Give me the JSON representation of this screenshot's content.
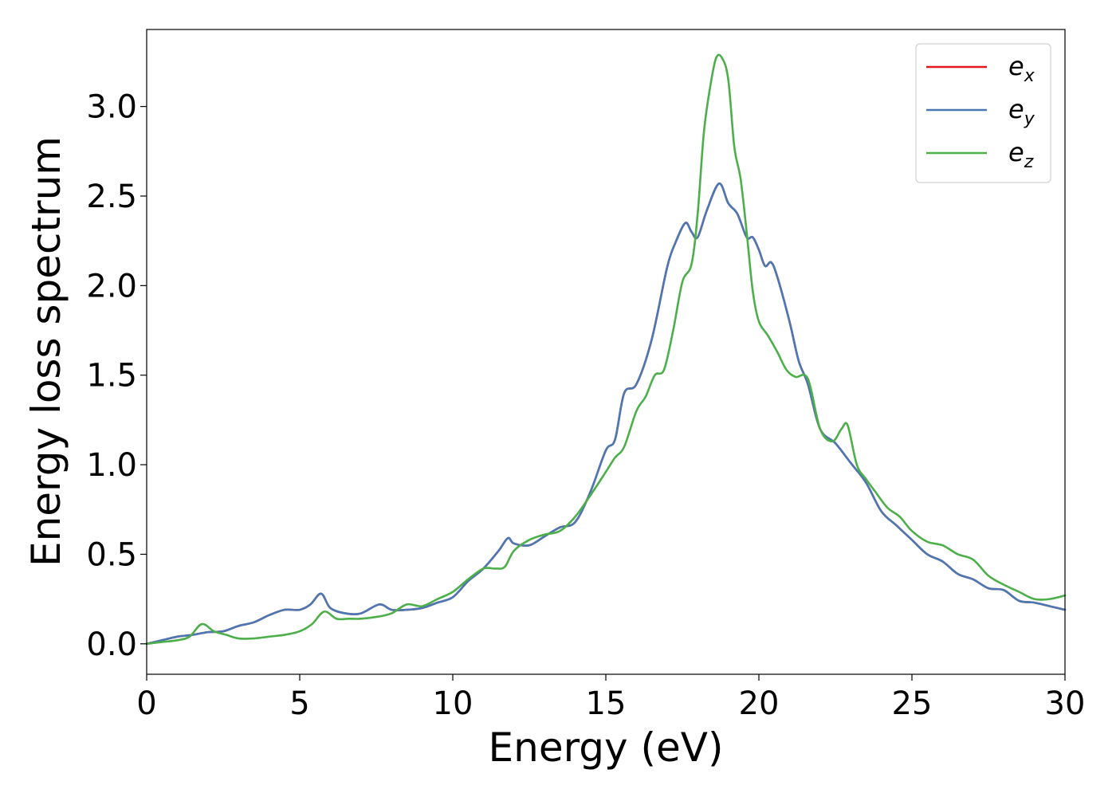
{
  "chart_data": {
    "type": "line",
    "title": "",
    "xlabel": "Energy (eV)",
    "ylabel": "Energy loss spectrum",
    "xlim": [
      0,
      30
    ],
    "ylim": [
      -0.17,
      3.43
    ],
    "xticks": [
      0,
      5,
      10,
      15,
      20,
      25,
      30
    ],
    "xtick_labels": [
      "0",
      "5",
      "10",
      "15",
      "20",
      "25",
      "30"
    ],
    "yticks": [
      0.0,
      0.5,
      1.0,
      1.5,
      2.0,
      2.5,
      3.0
    ],
    "ytick_labels": [
      "0.0",
      "0.5",
      "1.0",
      "1.5",
      "2.0",
      "2.5",
      "3.0"
    ],
    "grid": false,
    "legend_position": "top-right",
    "series": [
      {
        "name": "e_x",
        "label_base": "e",
        "label_sub": "x",
        "color": "#e41a1c",
        "x": [
          0,
          0.5,
          1,
          1.5,
          2,
          2.5,
          3,
          3.5,
          4,
          4.5,
          5,
          5.35,
          5.7,
          6,
          6.5,
          7,
          7.6,
          8,
          8.5,
          9,
          9.5,
          10,
          10.5,
          11,
          11.5,
          11.8,
          12,
          12.5,
          13,
          13.5,
          14,
          14.5,
          15,
          15.3,
          15.6,
          16,
          16.5,
          17,
          17.3,
          17.6,
          17.8,
          18,
          18.3,
          18.7,
          19,
          19.3,
          19.6,
          19.8,
          20,
          20.2,
          20.4,
          20.6,
          21,
          21.3,
          21.6,
          22,
          22.5,
          23,
          23.5,
          24,
          24.5,
          25,
          25.5,
          26,
          26.5,
          27,
          27.5,
          28,
          28.5,
          29,
          29.5,
          30
        ],
        "values": [
          0,
          0.02,
          0.04,
          0.05,
          0.065,
          0.07,
          0.1,
          0.12,
          0.16,
          0.19,
          0.19,
          0.22,
          0.28,
          0.2,
          0.17,
          0.17,
          0.22,
          0.19,
          0.19,
          0.2,
          0.23,
          0.26,
          0.35,
          0.42,
          0.52,
          0.59,
          0.56,
          0.55,
          0.6,
          0.65,
          0.68,
          0.85,
          1.08,
          1.14,
          1.4,
          1.45,
          1.7,
          2.1,
          2.25,
          2.35,
          2.3,
          2.27,
          2.42,
          2.57,
          2.46,
          2.4,
          2.27,
          2.27,
          2.2,
          2.11,
          2.13,
          2.05,
          1.8,
          1.58,
          1.45,
          1.2,
          1.12,
          1.01,
          0.9,
          0.74,
          0.66,
          0.58,
          0.5,
          0.46,
          0.39,
          0.36,
          0.31,
          0.3,
          0.24,
          0.23,
          0.21,
          0.19
        ]
      },
      {
        "name": "e_y",
        "label_base": "e",
        "label_sub": "y",
        "color": "#4a78b4",
        "x": [
          0,
          0.5,
          1,
          1.5,
          2,
          2.5,
          3,
          3.5,
          4,
          4.5,
          5,
          5.35,
          5.7,
          6,
          6.5,
          7,
          7.6,
          8,
          8.5,
          9,
          9.5,
          10,
          10.5,
          11,
          11.5,
          11.8,
          12,
          12.5,
          13,
          13.5,
          14,
          14.5,
          15,
          15.3,
          15.6,
          16,
          16.5,
          17,
          17.3,
          17.6,
          17.8,
          18,
          18.3,
          18.7,
          19,
          19.3,
          19.6,
          19.8,
          20,
          20.2,
          20.4,
          20.6,
          21,
          21.3,
          21.6,
          22,
          22.5,
          23,
          23.5,
          24,
          24.5,
          25,
          25.5,
          26,
          26.5,
          27,
          27.5,
          28,
          28.5,
          29,
          29.5,
          30
        ],
        "values": [
          0,
          0.02,
          0.04,
          0.05,
          0.065,
          0.07,
          0.1,
          0.12,
          0.16,
          0.19,
          0.19,
          0.22,
          0.28,
          0.2,
          0.17,
          0.17,
          0.22,
          0.19,
          0.19,
          0.2,
          0.23,
          0.26,
          0.35,
          0.42,
          0.52,
          0.59,
          0.56,
          0.55,
          0.6,
          0.65,
          0.68,
          0.85,
          1.08,
          1.14,
          1.4,
          1.45,
          1.7,
          2.1,
          2.25,
          2.35,
          2.3,
          2.27,
          2.42,
          2.57,
          2.46,
          2.4,
          2.27,
          2.27,
          2.2,
          2.11,
          2.13,
          2.05,
          1.8,
          1.58,
          1.45,
          1.2,
          1.12,
          1.01,
          0.9,
          0.74,
          0.66,
          0.58,
          0.5,
          0.46,
          0.39,
          0.36,
          0.31,
          0.3,
          0.24,
          0.23,
          0.21,
          0.19
        ]
      },
      {
        "name": "e_z",
        "label_base": "e",
        "label_sub": "z",
        "color": "#4daf4a",
        "x": [
          0,
          0.5,
          1,
          1.4,
          1.8,
          2.2,
          2.6,
          3,
          3.5,
          4,
          4.5,
          5,
          5.4,
          5.8,
          6.2,
          6.6,
          7,
          7.5,
          8,
          8.5,
          9,
          9.5,
          10,
          10.5,
          11,
          11.4,
          11.7,
          12,
          12.5,
          13,
          13.5,
          14,
          14.5,
          15,
          15.3,
          15.6,
          16,
          16.3,
          16.6,
          16.9,
          17.2,
          17.5,
          17.8,
          18,
          18.2,
          18.4,
          18.6,
          18.8,
          19,
          19.2,
          19.4,
          19.6,
          19.8,
          20,
          20.3,
          20.6,
          20.9,
          21.2,
          21.6,
          22,
          22.4,
          22.7,
          22.9,
          23.2,
          23.5,
          23.8,
          24.2,
          24.6,
          25,
          25.5,
          26,
          26.5,
          27,
          27.5,
          28,
          28.5,
          29,
          29.5,
          30
        ],
        "values": [
          0,
          0.01,
          0.02,
          0.04,
          0.11,
          0.07,
          0.05,
          0.03,
          0.03,
          0.04,
          0.05,
          0.07,
          0.11,
          0.18,
          0.14,
          0.14,
          0.14,
          0.15,
          0.17,
          0.22,
          0.21,
          0.25,
          0.29,
          0.36,
          0.42,
          0.42,
          0.43,
          0.52,
          0.58,
          0.61,
          0.63,
          0.71,
          0.83,
          0.96,
          1.04,
          1.1,
          1.3,
          1.38,
          1.5,
          1.53,
          1.75,
          2.02,
          2.12,
          2.4,
          2.85,
          3.1,
          3.27,
          3.27,
          3.15,
          2.77,
          2.6,
          2.3,
          1.97,
          1.8,
          1.72,
          1.63,
          1.53,
          1.49,
          1.48,
          1.2,
          1.13,
          1.2,
          1.22,
          1.0,
          0.92,
          0.85,
          0.76,
          0.71,
          0.63,
          0.57,
          0.55,
          0.5,
          0.47,
          0.38,
          0.33,
          0.29,
          0.25,
          0.25,
          0.27
        ]
      }
    ]
  }
}
